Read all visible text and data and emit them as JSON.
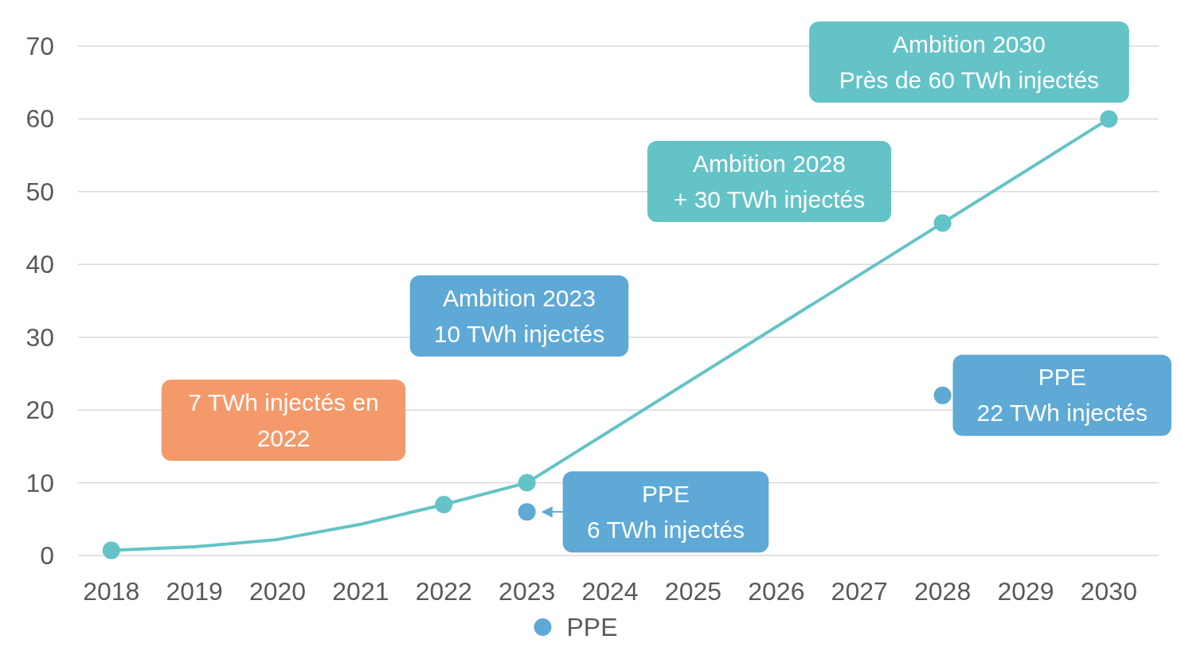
{
  "chart_data": {
    "type": "line",
    "xlim": [
      2017.6,
      2030.6
    ],
    "xticks": [
      2018,
      2019,
      2020,
      2021,
      2022,
      2023,
      2024,
      2025,
      2026,
      2027,
      2028,
      2029,
      2030
    ],
    "ylim": [
      0,
      70
    ],
    "yticks": [
      0,
      10,
      20,
      30,
      40,
      50,
      60,
      70
    ],
    "grid": "y",
    "legend": "bottom",
    "series": [
      {
        "color": "#64c3c7",
        "marker": "none",
        "x": [
          2018,
          2019,
          2020,
          2021,
          2022,
          2023,
          2028,
          2030
        ],
        "values": [
          0.7,
          1.2,
          2.2,
          4.3,
          7,
          10,
          45.7,
          60
        ]
      },
      {
        "type": "scatter",
        "color": "#64c3c7",
        "marker": "circle",
        "x": [
          2018,
          2022,
          2023,
          2028,
          2030
        ],
        "values": [
          0.7,
          7,
          10,
          45.7,
          60
        ]
      },
      {
        "type": "scatter",
        "name": "PPE",
        "color": "#5ea9d6",
        "marker": "circle",
        "x": [
          2023,
          2028
        ],
        "values": [
          6,
          22
        ]
      }
    ],
    "annotations": [
      "7 TWh injectés en\n2022",
      "Ambition 2023\n10 TWh injectés",
      {
        "text": "PPE\n6 TWh injectés",
        "x": 2023,
        "y": 6
      },
      "Ambition 2028\n+ 30 TWh injectés",
      {
        "text": "PPE\n22 TWh injectés",
        "x": 2028,
        "y": 22
      },
      "Ambition 2030\nPrès de 60 TWh injectés"
    ]
  }
}
